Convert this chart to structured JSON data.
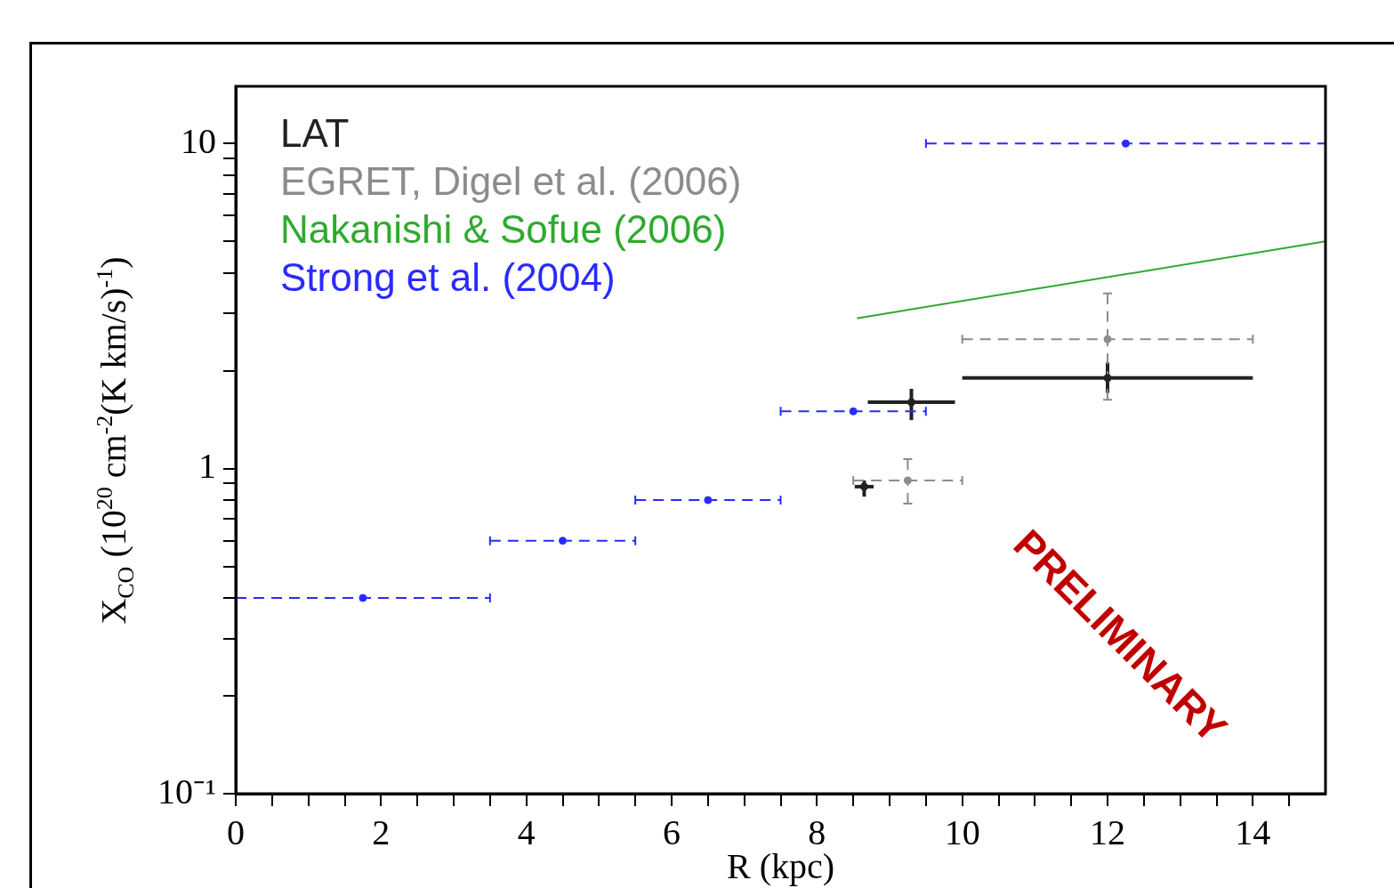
{
  "chart_data": {
    "type": "scatter",
    "xlabel": "R (kpc)",
    "ylabel": "X$_{CO}$ (10$^{20}$ cm$^{-2}$(K km/s)$^{-1}$)",
    "xlim": [
      0,
      15
    ],
    "ylim": [
      0.1,
      15
    ],
    "log": "y",
    "legend": "top left",
    "annotations": [
      "PRELIMINARY"
    ],
    "xticks": [
      0,
      {
        "value": 0.5,
        "label": null
      },
      {
        "value": 1,
        "label": null
      },
      {
        "value": 1.5,
        "label": null
      },
      2,
      {
        "value": 2.5,
        "label": null
      },
      {
        "value": 3,
        "label": null
      },
      {
        "value": 3.5,
        "label": null
      },
      4,
      {
        "value": 4.5,
        "label": null
      },
      {
        "value": 5,
        "label": null
      },
      {
        "value": 5.5,
        "label": null
      },
      6,
      {
        "value": 6.5,
        "label": null
      },
      {
        "value": 7,
        "label": null
      },
      {
        "value": 7.5,
        "label": null
      },
      8,
      {
        "value": 8.5,
        "label": null
      },
      {
        "value": 9,
        "label": null
      },
      {
        "value": 9.5,
        "label": null
      },
      10,
      {
        "value": 10.5,
        "label": null
      },
      {
        "value": 11,
        "label": null
      },
      {
        "value": 11.5,
        "label": null
      },
      12,
      {
        "value": 12.5,
        "label": null
      },
      {
        "value": 13,
        "label": null
      },
      {
        "value": 13.5,
        "label": null
      },
      14,
      {
        "value": 14.5,
        "label": null
      }
    ],
    "yticks": [
      {
        "value": 0.1,
        "label": "10⁻¹"
      },
      {
        "value": 0.2,
        "label": null
      },
      {
        "value": 0.3,
        "label": null
      },
      {
        "value": 0.4,
        "label": null
      },
      {
        "value": 0.5,
        "label": null
      },
      {
        "value": 0.6,
        "label": null
      },
      {
        "value": 0.7,
        "label": null
      },
      {
        "value": 0.8,
        "label": null
      },
      {
        "value": 0.9,
        "label": null
      },
      1,
      {
        "value": 2,
        "label": null
      },
      {
        "value": 3,
        "label": null
      },
      {
        "value": 4,
        "label": null
      },
      {
        "value": 5,
        "label": null
      },
      {
        "value": 6,
        "label": null
      },
      {
        "value": 7,
        "label": null
      },
      {
        "value": 8,
        "label": null
      },
      {
        "value": 9,
        "label": null
      },
      10
    ],
    "series": [
      {
        "name": "LAT",
        "color": "#222222",
        "line_style": "solid",
        "x": [
          8.65,
          9.3,
          12
        ],
        "values": [
          0.88,
          1.6,
          1.9
        ],
        "xerrors": [
          [
            8.52,
            8.78
          ],
          [
            8.7,
            9.9
          ],
          [
            10,
            14
          ]
        ],
        "errors": [
          [
            0.82,
            0.92
          ],
          [
            1.41,
            1.76
          ],
          [
            1.71,
            2.12
          ]
        ]
      },
      {
        "name": "EGRET, Digel et al. (2006)",
        "color": "#8c8c8c",
        "line_style": "dashed",
        "x": [
          9.25,
          12
        ],
        "values": [
          0.92,
          2.5
        ],
        "xerrors": [
          [
            8.5,
            10
          ],
          [
            10,
            14
          ]
        ],
        "errors": [
          [
            0.78,
            1.07
          ],
          [
            1.63,
            3.46
          ]
        ]
      },
      {
        "name": "Nakanishi & Sofue (2006)",
        "type": "line",
        "color": "#2eaa2e",
        "line_style": "solid",
        "x": [
          8.55,
          15
        ],
        "values": [
          2.9,
          5.0
        ]
      },
      {
        "name": "Strong et al. (2004)",
        "color": "#2a2aff",
        "line_style": "dashed",
        "x": [
          1.75,
          4.5,
          6.5,
          8.5,
          12.25
        ],
        "values": [
          0.4,
          0.6,
          0.8,
          1.5,
          10
        ],
        "xerrors": [
          [
            0,
            3.5
          ],
          [
            3.5,
            5.5
          ],
          [
            5.5,
            7.5
          ],
          [
            7.5,
            9.5
          ],
          [
            9.5,
            15
          ]
        ]
      }
    ]
  }
}
